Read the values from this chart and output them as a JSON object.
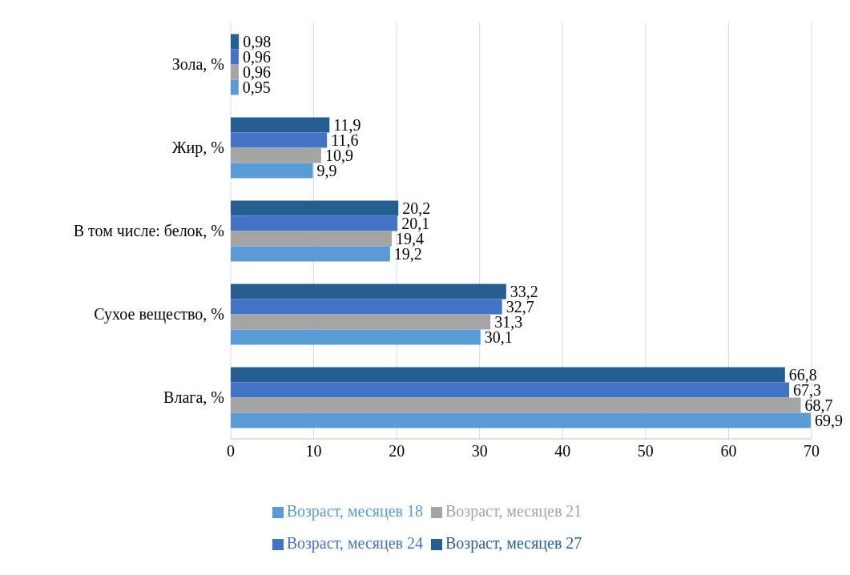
{
  "chart_data": {
    "type": "bar",
    "orientation": "horizontal",
    "categories": [
      "Зола, %",
      "Жир, %",
      "В том числе: белок, %",
      "Сухое вещество, %",
      "Влага, %"
    ],
    "series": [
      {
        "name": "Возраст, месяцев 27",
        "color": "#255e91",
        "values": [
          0.98,
          11.9,
          20.2,
          33.2,
          66.8
        ],
        "value_labels": [
          "0,98",
          "11,9",
          "20,2",
          "33,2",
          "66,8"
        ]
      },
      {
        "name": "Возраст, месяцев 24",
        "color": "#4472c4",
        "values": [
          0.96,
          11.6,
          20.1,
          32.7,
          67.3
        ],
        "value_labels": [
          "0,96",
          "11,6",
          "20,1",
          "32,7",
          "67,3"
        ]
      },
      {
        "name": "Возраст, месяцев 21",
        "color": "#a5a5a5",
        "values": [
          0.96,
          10.9,
          19.4,
          31.3,
          68.7
        ],
        "value_labels": [
          "0,96",
          "10,9",
          "19,4",
          "31,3",
          "68,7"
        ]
      },
      {
        "name": "Возраст, месяцев 18",
        "color": "#5b9bd5",
        "values": [
          0.95,
          9.9,
          19.2,
          30.1,
          69.9
        ],
        "value_labels": [
          "0,95",
          "9,9",
          "19,2",
          "30,1",
          "69,9"
        ]
      }
    ],
    "xlim": [
      0,
      70
    ],
    "xticks": [
      0,
      10,
      20,
      30,
      40,
      50,
      60,
      70
    ],
    "grid": "x",
    "legend": "bottom"
  }
}
